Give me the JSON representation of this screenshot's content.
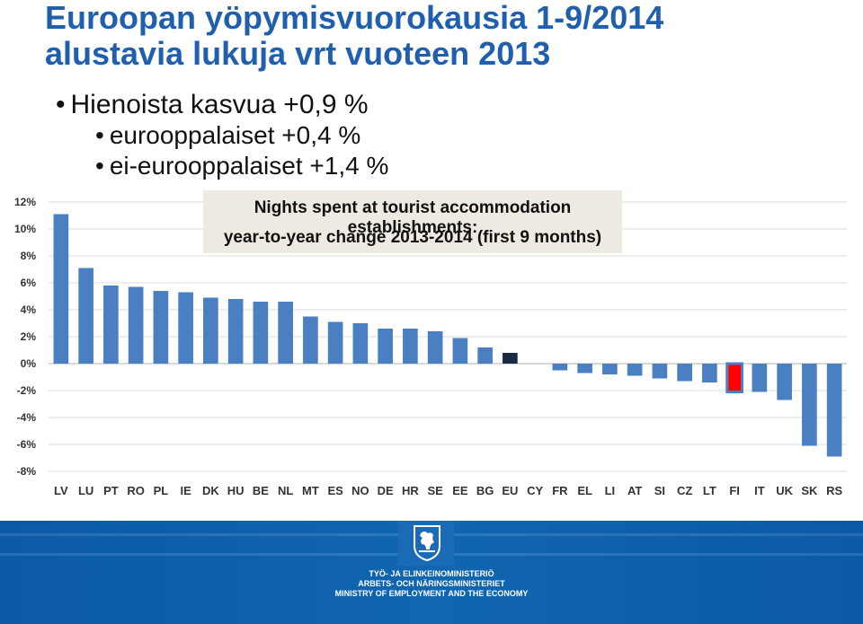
{
  "slide": {
    "title_line1": "Euroopan yöpymisvuorokausia 1-9/2014",
    "title_line2": "alustavia lukuja vrt vuoteen 2013",
    "bullet_main": "Hienoista kasvua +0,9 %",
    "bullet_sub1": "eurooppalaiset +0,4 %",
    "bullet_sub2": "ei-eurooppalaiset +1,4 %"
  },
  "footer": {
    "line1": "TYÖ- JA ELINKEINOMINISTERIÖ",
    "line2": "ARBETS- OCH NÄRINGSMINISTERIET",
    "line3": "MINISTRY OF EMPLOYMENT AND THE ECONOMY"
  },
  "colors": {
    "title": "#1f5fae",
    "bar": "#4a7fc1",
    "eu_bar": "#1b2a44",
    "highlight_bar": "#ff0000",
    "footer": "#0b5aa6"
  },
  "chart_data": {
    "type": "bar",
    "title_line1": "Nights spent at tourist accommodation establishments:",
    "title_line2": "year-to-year change 2013-2014 (first 9 months)",
    "categories": [
      "LV",
      "LU",
      "PT",
      "RO",
      "PL",
      "IE",
      "DK",
      "HU",
      "BE",
      "NL",
      "MT",
      "ES",
      "NO",
      "DE",
      "HR",
      "SE",
      "EE",
      "BG",
      "EU",
      "CY",
      "FR",
      "EL",
      "LI",
      "AT",
      "SI",
      "CZ",
      "LT",
      "FI",
      "IT",
      "UK",
      "SK",
      "RS"
    ],
    "values": [
      11.1,
      7.1,
      5.8,
      5.7,
      5.4,
      5.3,
      4.9,
      4.8,
      4.6,
      4.6,
      3.5,
      3.1,
      3.0,
      2.6,
      2.6,
      2.4,
      1.9,
      1.2,
      0.8,
      0.0,
      -0.5,
      -0.7,
      -0.8,
      -0.9,
      -1.1,
      -1.3,
      -1.4,
      -2.1,
      -2.1,
      -2.7,
      -6.1,
      -6.9
    ],
    "highlight": {
      "EU": "eu_bar",
      "FI": "highlight_bar"
    },
    "ylim": [
      -8,
      12
    ],
    "yticks": [
      "12%",
      "10%",
      "8%",
      "6%",
      "4%",
      "2%",
      "0%",
      "-2%",
      "-4%",
      "-6%",
      "-8%"
    ],
    "grid": true
  }
}
